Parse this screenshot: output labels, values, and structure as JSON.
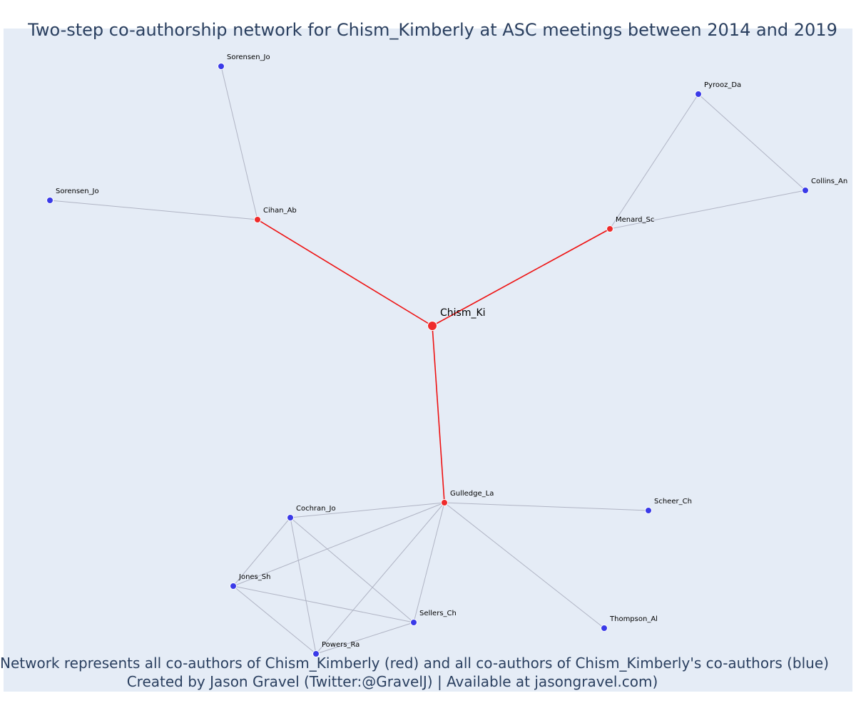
{
  "title": "Two-step co-authorship network for Chism_Kimberly at ASC meetings between 2014 and 2019",
  "footer": {
    "line1": "Network represents all co-authors of Chism_Kimberly (red) and all co-authors of Chism_Kimberly's co-authors (blue)",
    "line2": "Created by Jason Gravel (Twitter:@GravelJ) | Available at jasongravel.com)"
  },
  "colors": {
    "background": "#e5ecf6",
    "red": "#ef2b2b",
    "blue": "#3a3ae8",
    "ego_edge": "#ee1111",
    "other_edge": "#b0b4c4",
    "text": "#2a3f5f"
  },
  "nodes": [
    {
      "id": "chism",
      "label": "Chism_Ki",
      "group": "ego"
    },
    {
      "id": "cihan",
      "label": "Cihan_Ab",
      "group": "red"
    },
    {
      "id": "menard",
      "label": "Menard_Sc",
      "group": "red"
    },
    {
      "id": "gulledge",
      "label": "Gulledge_La",
      "group": "red"
    },
    {
      "id": "sorensen1",
      "label": "Sorensen_Jo",
      "group": "blue"
    },
    {
      "id": "sorensen2",
      "label": "Sorensen_Jo",
      "group": "blue"
    },
    {
      "id": "pyrooz",
      "label": "Pyrooz_Da",
      "group": "blue"
    },
    {
      "id": "collins",
      "label": "Collins_An",
      "group": "blue"
    },
    {
      "id": "cochran",
      "label": "Cochran_Jo",
      "group": "blue"
    },
    {
      "id": "scheer",
      "label": "Scheer_Ch",
      "group": "blue"
    },
    {
      "id": "jones",
      "label": "Jones_Sh",
      "group": "blue"
    },
    {
      "id": "sellers",
      "label": "Sellers_Ch",
      "group": "blue"
    },
    {
      "id": "thompson",
      "label": "Thompson_Al",
      "group": "blue"
    },
    {
      "id": "powers",
      "label": "Powers_Ra",
      "group": "blue"
    }
  ],
  "edges": [
    [
      "chism",
      "cihan"
    ],
    [
      "chism",
      "menard"
    ],
    [
      "chism",
      "gulledge"
    ],
    [
      "cihan",
      "sorensen1"
    ],
    [
      "cihan",
      "sorensen2"
    ],
    [
      "menard",
      "pyrooz"
    ],
    [
      "menard",
      "collins"
    ],
    [
      "pyrooz",
      "collins"
    ],
    [
      "gulledge",
      "cochran"
    ],
    [
      "gulledge",
      "scheer"
    ],
    [
      "gulledge",
      "jones"
    ],
    [
      "gulledge",
      "sellers"
    ],
    [
      "gulledge",
      "thompson"
    ],
    [
      "gulledge",
      "powers"
    ],
    [
      "cochran",
      "jones"
    ],
    [
      "cochran",
      "sellers"
    ],
    [
      "cochran",
      "powers"
    ],
    [
      "jones",
      "sellers"
    ],
    [
      "jones",
      "powers"
    ],
    [
      "sellers",
      "powers"
    ]
  ]
}
